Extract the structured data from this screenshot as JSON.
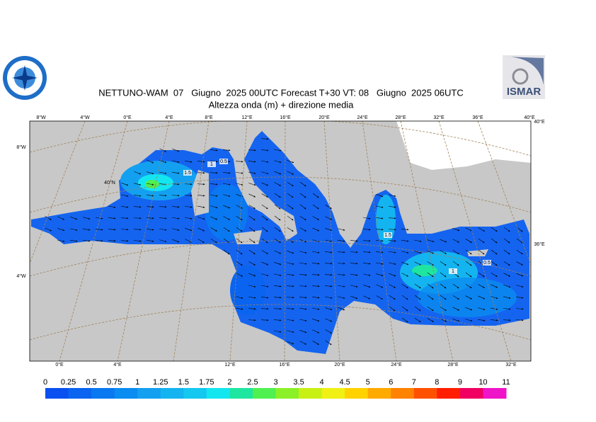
{
  "header": {
    "title": "NETTUNO-WAM  07   Giugno  2025 00UTC Forecast T+30 VT: 08   Giugno  2025 06UTC",
    "subtitle": "Altezza onda (m) + direzione media"
  },
  "logo": {
    "text": "ISMAR"
  },
  "map": {
    "top_labels": [
      "8°W",
      "4°W",
      "0°E",
      "4°E",
      "8°E",
      "12°E",
      "16°E",
      "20°E",
      "24°E",
      "28°E",
      "32°E",
      "36°E",
      "40°E"
    ],
    "bottom_labels": [
      "0°E",
      "4°E",
      "12°E",
      "16°E",
      "20°E",
      "24°E",
      "28°E",
      "32°E"
    ],
    "left_labels": [
      "8°W",
      "4°W"
    ],
    "right_labels": [
      "40°E",
      "36°E"
    ],
    "inner_labels": [
      "40°N"
    ],
    "contour_labels": [
      "1.5",
      "1",
      "0.5",
      "1.5",
      "1",
      "0.5"
    ]
  },
  "colorbar": {
    "levels": [
      0,
      0.25,
      0.5,
      0.75,
      1,
      1.25,
      1.5,
      1.75,
      2,
      2.5,
      3,
      3.5,
      4,
      4.5,
      5,
      6,
      7,
      8,
      9,
      10,
      11
    ],
    "colors": [
      "#0a50f0",
      "#0a64f0",
      "#0a78f0",
      "#0a8cf0",
      "#14a0f0",
      "#14b4f0",
      "#14c8f0",
      "#14e6f0",
      "#1ee6a0",
      "#50f050",
      "#8cf028",
      "#c8f014",
      "#f0f014",
      "#ffd200",
      "#ffaa00",
      "#ff8200",
      "#ff5000",
      "#ff1e00",
      "#f00060",
      "#f014c8"
    ]
  }
}
